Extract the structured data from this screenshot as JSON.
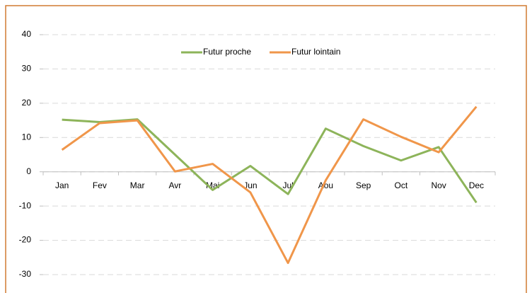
{
  "chart_data": {
    "type": "line",
    "categories": [
      "Jan",
      "Fev",
      "Mar",
      "Avr",
      "Mai",
      "Jun",
      "Jul",
      "Aou",
      "Sep",
      "Oct",
      "Nov",
      "Dec"
    ],
    "series": [
      {
        "name": "Futur proche",
        "color": "#8db45a",
        "values": [
          15.2,
          14.5,
          15.3,
          5,
          -5.3,
          1.7,
          -6.5,
          12.6,
          7.5,
          3.3,
          7.2,
          -9
        ]
      },
      {
        "name": "Futur lointain",
        "color": "#f0964a",
        "values": [
          6.4,
          14.2,
          15,
          0.1,
          2.3,
          -6,
          -26.6,
          -2.5,
          15.3,
          10.2,
          5.7,
          19
        ]
      }
    ],
    "ylim": [
      -30,
      40
    ],
    "yticks": [
      -30,
      -20,
      -10,
      0,
      10,
      20,
      30,
      40
    ],
    "grid": true
  }
}
